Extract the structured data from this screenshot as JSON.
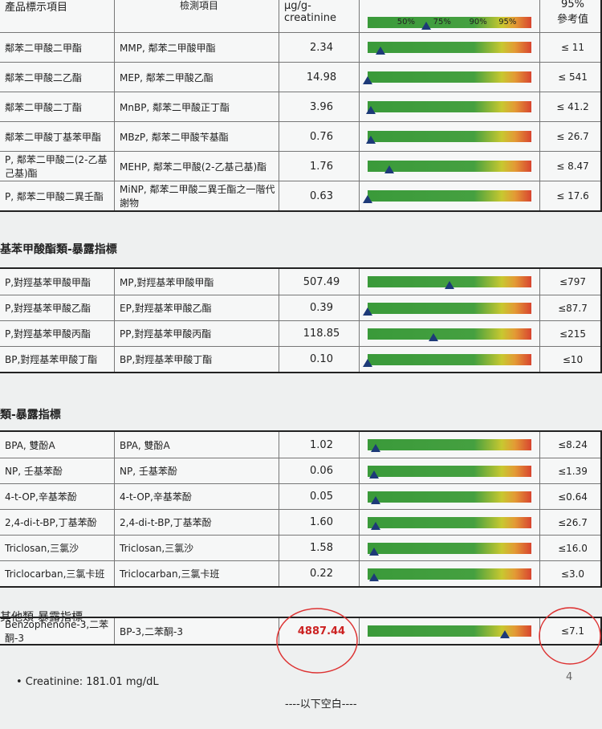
{
  "header": {
    "col1": "產品標示項目",
    "col2": "檢測項目",
    "col3": "μg/g-creatinine",
    "scale": [
      "50%",
      "75%",
      "90%",
      "95%"
    ],
    "col5": [
      "95%",
      "參考值"
    ]
  },
  "tables": [
    {
      "rows": [
        [
          "鄰苯二甲酸二甲酯",
          "MMP, 鄰苯二甲酸甲酯",
          "2.34",
          "≤ 11"
        ],
        [
          "鄰苯二甲酸二乙酯",
          "MEP, 鄰苯二甲酸乙酯",
          "14.98",
          "≤ 541"
        ],
        [
          "鄰苯二甲酸二丁酯",
          "MnBP, 鄰苯二甲酸正丁酯",
          "3.96",
          "≤ 41.2"
        ],
        [
          "鄰苯二甲酸丁基苯甲酯",
          "MBzP, 鄰苯二甲酸苄基酯",
          "0.76",
          "≤ 26.7"
        ],
        [
          "P, 鄰苯二甲酸二(2-乙基己基)酯",
          "MEHP, 鄰苯二甲酸(2-乙基己基)酯",
          "1.76",
          "≤ 8.47"
        ],
        [
          "P, 鄰苯二甲酸二異壬酯",
          "MiNP, 鄰苯二甲酸二異壬酯之一階代謝物",
          "0.63",
          "≤ 17.6"
        ]
      ]
    },
    {
      "title": "基苯甲酸酯類-暴露指標",
      "rows": [
        [
          "P,對羥基苯甲酸甲酯",
          "MP,對羥基苯甲酸甲酯",
          "507.49",
          "≤797"
        ],
        [
          "P,對羥基苯甲酸乙酯",
          "EP,對羥基苯甲酸乙酯",
          "0.39",
          "≤87.7"
        ],
        [
          "P,對羥基苯甲酸丙酯",
          "PP,對羥基苯甲酸丙酯",
          "118.85",
          "≤215"
        ],
        [
          "BP,對羥基苯甲酸丁酯",
          "BP,對羥基苯甲酸丁酯",
          "0.10",
          "≤10"
        ]
      ]
    },
    {
      "title": "類-暴露指標",
      "rows": [
        [
          "BPA, 雙酚A",
          "BPA, 雙酚A",
          "1.02",
          "≤8.24"
        ],
        [
          "NP, 壬基苯酚",
          "NP, 壬基苯酚",
          "0.06",
          "≤1.39"
        ],
        [
          "4-t-OP,辛基苯酚",
          "4-t-OP,辛基苯酚",
          "0.05",
          "≤0.64"
        ],
        [
          "2,4-di-t-BP,丁基苯酚",
          "2,4-di-t-BP,丁基苯酚",
          "1.60",
          "≤26.7"
        ],
        [
          "Triclosan,三氯沙",
          "Triclosan,三氯沙",
          "1.58",
          "≤16.0"
        ],
        [
          "Triclocarban,三氯卡班",
          "Triclocarban,三氯卡班",
          "0.22",
          "≤3.0"
        ]
      ]
    },
    {
      "title": "其他類-暴露指標",
      "rows": [
        [
          "Benzophenone-3,二苯酮-3",
          "BP-3,二苯酮-3",
          "4887.44",
          "≤7.1"
        ]
      ]
    }
  ],
  "footer": {
    "note": "• Creatinine: 181.01 mg/dL",
    "page": "4",
    "end": "----以下空白----"
  }
}
